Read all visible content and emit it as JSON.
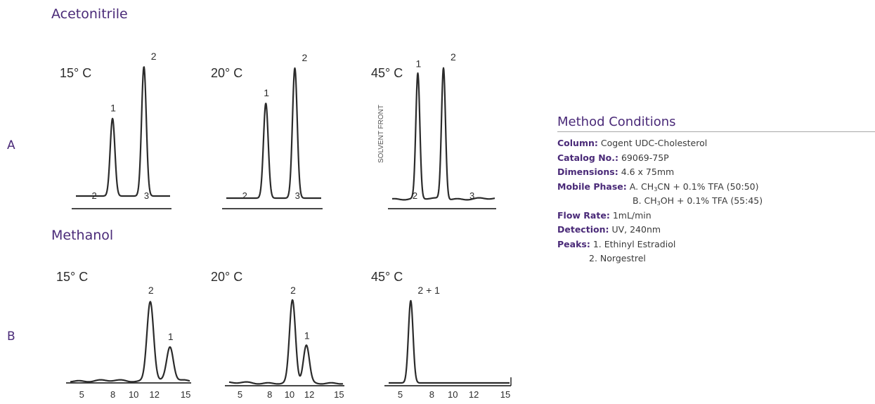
{
  "sections": [
    {
      "title": "Acetonitrile",
      "row_label": "A"
    },
    {
      "title": "Methanol",
      "row_label": "B"
    }
  ],
  "conditions": {
    "heading": "Method Conditions",
    "column": {
      "label": "Column:",
      "value": "Cogent UDC-Cholesterol"
    },
    "catalog": {
      "label": "Catalog No.:",
      "value": "69069-75P"
    },
    "dims": {
      "label": "Dimensions:",
      "value": "4.6 x 75mm"
    },
    "mobile": {
      "label": "Mobile Phase:",
      "a_prefix": "A. CH",
      "a_sub": "3",
      "a_rest": "CN + 0.1% TFA (50:50)",
      "b_prefix": "B. CH",
      "b_sub": "3",
      "b_rest": "OH + 0.1% TFA (55:45)"
    },
    "flow": {
      "label": "Flow Rate:",
      "value": "1mL/min"
    },
    "detection": {
      "label": "Detection:",
      "value": "UV, 240nm"
    },
    "peaks": {
      "label": "Peaks:",
      "value1": "1. Ethinyl Estradiol",
      "value2": "2. Norgestrel"
    }
  },
  "chart_data": [
    {
      "type": "line",
      "title": "15° C",
      "x_ticks": [
        2,
        3
      ],
      "peaks": [
        {
          "label": "1",
          "x": 2.35,
          "height": 0.6
        },
        {
          "label": "2",
          "x": 2.95,
          "height": 1.0
        }
      ]
    },
    {
      "type": "line",
      "title": "20° C",
      "x_ticks": [
        2,
        3
      ],
      "peaks": [
        {
          "label": "1",
          "x": 2.4,
          "height": 0.73
        },
        {
          "label": "2",
          "x": 2.95,
          "height": 1.0
        }
      ]
    },
    {
      "type": "line",
      "title": "45° C",
      "x_ticks": [
        2,
        3
      ],
      "annotation": "SOLVENT FRONT",
      "peaks": [
        {
          "label": "1",
          "x": 2.05,
          "height": 0.95
        },
        {
          "label": "2",
          "x": 2.5,
          "height": 1.0
        }
      ]
    },
    {
      "type": "line",
      "title": "15° C",
      "x_ticks": [
        5,
        8,
        10,
        12,
        15
      ],
      "peaks": [
        {
          "label": "2",
          "x": 11.6,
          "height": 1.0
        },
        {
          "label": "1",
          "x": 13.5,
          "height": 0.42
        }
      ]
    },
    {
      "type": "line",
      "title": "20° C",
      "x_ticks": [
        5,
        8,
        10,
        12,
        15
      ],
      "peaks": [
        {
          "label": "2",
          "x": 10.3,
          "height": 1.0
        },
        {
          "label": "1",
          "x": 11.7,
          "height": 0.45
        }
      ]
    },
    {
      "type": "line",
      "title": "45° C",
      "x_ticks": [
        5,
        8,
        10,
        12,
        15
      ],
      "peaks": [
        {
          "label": "2 + 1",
          "x": 6.0,
          "height": 1.0
        }
      ]
    }
  ]
}
